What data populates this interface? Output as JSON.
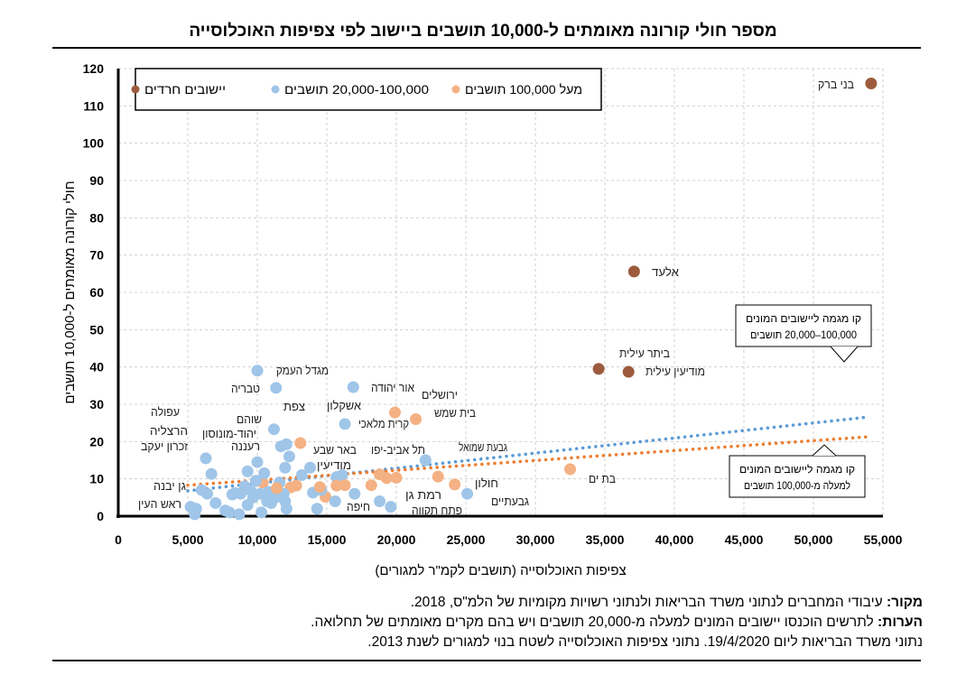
{
  "chart_data": {
    "type": "scatter",
    "title": "מספר חולי קורונה מאומתים ל-10,000 תושבים ביישוב לפי צפיפות האוכלוסייה",
    "xlabel": "צפיפות האוכלוסייה (תושבים לקמ\"ר למגורים)",
    "ylabel": "חולי קורונה מאומתים ל-10,000 תושבים",
    "xlim": [
      0,
      55000
    ],
    "ylim": [
      0,
      120
    ],
    "xticks": [
      "0",
      "5,000",
      "10,000",
      "15,000",
      "20,000",
      "25,000",
      "30,000",
      "35,000",
      "40,000",
      "45,000",
      "50,000",
      "55,000"
    ],
    "yticks": [
      "0",
      "10",
      "20",
      "30",
      "40",
      "50",
      "60",
      "70",
      "80",
      "90",
      "100",
      "110",
      "120"
    ],
    "grid": true,
    "legend_position": "top-left",
    "colors": {
      "haredi": "#9c5b3c",
      "mid": "#9fc5e8",
      "large": "#f4b183",
      "trend_mid": "#5b9bd5",
      "trend_large": "#ed7d31"
    },
    "legend": [
      {
        "group": "large",
        "label": "מעל 100,000 תושבים"
      },
      {
        "group": "mid",
        "label": "20,000-100,000 תושבים"
      },
      {
        "group": "haredi",
        "label": "יישובים חרדים"
      }
    ],
    "points": [
      {
        "name": "בני ברק",
        "x": 54150,
        "y": 116,
        "group": "haredi"
      },
      {
        "name": "אלעד",
        "x": 37100,
        "y": 65.6,
        "group": "haredi"
      },
      {
        "name": "ביתר עילית",
        "x": 34550,
        "y": 39.5,
        "group": "haredi"
      },
      {
        "name": "מודיעין עילית",
        "x": 36700,
        "y": 38.7,
        "group": "haredi"
      },
      {
        "name": "בת ים",
        "x": 32500,
        "y": 12.6,
        "group": "large"
      },
      {
        "name": "חולון",
        "x": 24200,
        "y": 8.5,
        "group": "large"
      },
      {
        "name": "גבעתיים",
        "x": 25100,
        "y": 6,
        "group": "mid"
      },
      {
        "name": "גבעת שמואל",
        "x": 22100,
        "y": 15,
        "group": "mid"
      },
      {
        "name": "ירושלים",
        "x": 19900,
        "y": 27.8,
        "group": "large"
      },
      {
        "name": "בית שמש",
        "x": 21400,
        "y": 26,
        "group": "large"
      },
      {
        "name": "קרית מלאכי",
        "x": 16300,
        "y": 24.7,
        "group": "mid"
      },
      {
        "name": "אור יהודה",
        "x": 16900,
        "y": 34.6,
        "group": "mid"
      },
      {
        "name": "מגדל העמק",
        "x": 10000,
        "y": 39,
        "group": "mid"
      },
      {
        "name": "טבריה",
        "x": 11350,
        "y": 34.4,
        "group": "mid"
      },
      {
        "name": "אשקלון",
        "x": 13100,
        "y": 19.6,
        "group": "large"
      },
      {
        "name": "צפת",
        "x": 12100,
        "y": 19.3,
        "group": "mid"
      },
      {
        "name": "שוהם",
        "x": 11200,
        "y": 23.3,
        "group": "mid"
      },
      {
        "name": "יהוד-מונוסון",
        "x": 11700,
        "y": 18.7,
        "group": "mid"
      },
      {
        "name": "רעננה",
        "x": 12000,
        "y": 13,
        "group": "mid"
      },
      {
        "name": "באר שבע",
        "x": 12400,
        "y": 7.7,
        "group": "large"
      },
      {
        "name": "מודיעין",
        "x": 13800,
        "y": 13,
        "group": "mid"
      },
      {
        "name": "עפולה",
        "x": 9300,
        "y": 12,
        "group": "mid"
      },
      {
        "name": "הרצליה",
        "x": 10400,
        "y": 9,
        "group": "large"
      },
      {
        "name": "זכרון יעקב",
        "x": 6300,
        "y": 15.5,
        "group": "mid"
      },
      {
        "name": "גן יבנה",
        "x": 6700,
        "y": 11.3,
        "group": "mid"
      },
      {
        "name": "ראש העין",
        "x": 8200,
        "y": 5.8,
        "group": "mid"
      },
      {
        "name": "חיפה",
        "x": 14900,
        "y": 5.2,
        "group": "large"
      },
      {
        "name": "תל אביב-יפו",
        "x": 18800,
        "y": 11.2,
        "group": "large"
      },
      {
        "name": "רמת גן",
        "x": 19300,
        "y": 10.2,
        "group": "large"
      },
      {
        "name": "פתח תקווה",
        "x": 20000,
        "y": 10.3,
        "group": "large"
      },
      {
        "name": "",
        "x": 5200,
        "y": 2.5,
        "group": "mid"
      },
      {
        "name": "",
        "x": 5500,
        "y": 0.5,
        "group": "mid"
      },
      {
        "name": "",
        "x": 5600,
        "y": 2,
        "group": "mid"
      },
      {
        "name": "",
        "x": 6000,
        "y": 7,
        "group": "mid"
      },
      {
        "name": "",
        "x": 6400,
        "y": 6,
        "group": "mid"
      },
      {
        "name": "",
        "x": 7000,
        "y": 3.5,
        "group": "mid"
      },
      {
        "name": "",
        "x": 7700,
        "y": 1.5,
        "group": "mid"
      },
      {
        "name": "",
        "x": 8000,
        "y": 1,
        "group": "mid"
      },
      {
        "name": "",
        "x": 8400,
        "y": 6.2,
        "group": "mid"
      },
      {
        "name": "",
        "x": 8700,
        "y": 0.5,
        "group": "mid"
      },
      {
        "name": "",
        "x": 8800,
        "y": 6,
        "group": "mid"
      },
      {
        "name": "",
        "x": 9100,
        "y": 8,
        "group": "mid"
      },
      {
        "name": "",
        "x": 9300,
        "y": 3,
        "group": "mid"
      },
      {
        "name": "",
        "x": 9500,
        "y": 7,
        "group": "mid"
      },
      {
        "name": "",
        "x": 9700,
        "y": 5,
        "group": "mid"
      },
      {
        "name": "",
        "x": 9900,
        "y": 9.5,
        "group": "mid"
      },
      {
        "name": "",
        "x": 10000,
        "y": 14.5,
        "group": "mid"
      },
      {
        "name": "",
        "x": 10200,
        "y": 6,
        "group": "mid"
      },
      {
        "name": "",
        "x": 10300,
        "y": 1,
        "group": "mid"
      },
      {
        "name": "",
        "x": 10500,
        "y": 11.5,
        "group": "mid"
      },
      {
        "name": "",
        "x": 10700,
        "y": 4,
        "group": "mid"
      },
      {
        "name": "",
        "x": 10800,
        "y": 6.5,
        "group": "mid"
      },
      {
        "name": "",
        "x": 11000,
        "y": 3.5,
        "group": "mid"
      },
      {
        "name": "",
        "x": 11300,
        "y": 5,
        "group": "mid"
      },
      {
        "name": "",
        "x": 11600,
        "y": 9,
        "group": "mid"
      },
      {
        "name": "",
        "x": 11900,
        "y": 6,
        "group": "mid"
      },
      {
        "name": "",
        "x": 12000,
        "y": 4,
        "group": "mid"
      },
      {
        "name": "",
        "x": 12100,
        "y": 2,
        "group": "mid"
      },
      {
        "name": "",
        "x": 12300,
        "y": 16,
        "group": "mid"
      },
      {
        "name": "",
        "x": 13200,
        "y": 11,
        "group": "mid"
      },
      {
        "name": "",
        "x": 14000,
        "y": 6.3,
        "group": "mid"
      },
      {
        "name": "",
        "x": 14300,
        "y": 2,
        "group": "mid"
      },
      {
        "name": "",
        "x": 14600,
        "y": 7,
        "group": "mid"
      },
      {
        "name": "",
        "x": 15600,
        "y": 4,
        "group": "mid"
      },
      {
        "name": "",
        "x": 15700,
        "y": 10.5,
        "group": "mid"
      },
      {
        "name": "",
        "x": 16100,
        "y": 11,
        "group": "mid"
      },
      {
        "name": "",
        "x": 17000,
        "y": 6,
        "group": "mid"
      },
      {
        "name": "",
        "x": 18800,
        "y": 4,
        "group": "mid"
      },
      {
        "name": "",
        "x": 19600,
        "y": 2.5,
        "group": "mid"
      },
      {
        "name": "",
        "x": 11400,
        "y": 7.5,
        "group": "large"
      },
      {
        "name": "",
        "x": 14500,
        "y": 7.8,
        "group": "large"
      },
      {
        "name": "",
        "x": 15700,
        "y": 8.2,
        "group": "large"
      },
      {
        "name": "",
        "x": 16300,
        "y": 8.3,
        "group": "large"
      },
      {
        "name": "",
        "x": 18200,
        "y": 8.3,
        "group": "large"
      },
      {
        "name": "",
        "x": 23000,
        "y": 10.6,
        "group": "large"
      },
      {
        "name": "",
        "x": 12800,
        "y": 8.2,
        "group": "large"
      }
    ],
    "trendlines": [
      {
        "group": "mid",
        "x": [
          5000,
          54000
        ],
        "y": [
          6.8,
          26.6
        ],
        "annotation": "קו מגמה ליישובים המונים 100,000–20,000 תושבים"
      },
      {
        "group": "large",
        "x": [
          5000,
          54000
        ],
        "y": [
          8.3,
          21.3
        ],
        "annotation": "קו מגמה ליישובים המונים למעלה מ-100,000 תושבים"
      }
    ]
  },
  "notes": {
    "source_label": "מקור:",
    "source": " עיבודי המחברים לנתוני משרד הבריאות ולנתוני רשויות מקומיות של הלמ\"ס, 2018.",
    "notes_label": "הערות:",
    "notes1": " לתרשים הוכנסו יישובים המונים למעלה מ-20,000 תושבים ויש בהם מקרים מאומתים של תחלואה.",
    "notes2": "נתוני משרד הבריאות ליום 19/4/2020. נתוני צפיפות האוכלוסייה לשטח בנוי למגורים לשנת 2013."
  }
}
